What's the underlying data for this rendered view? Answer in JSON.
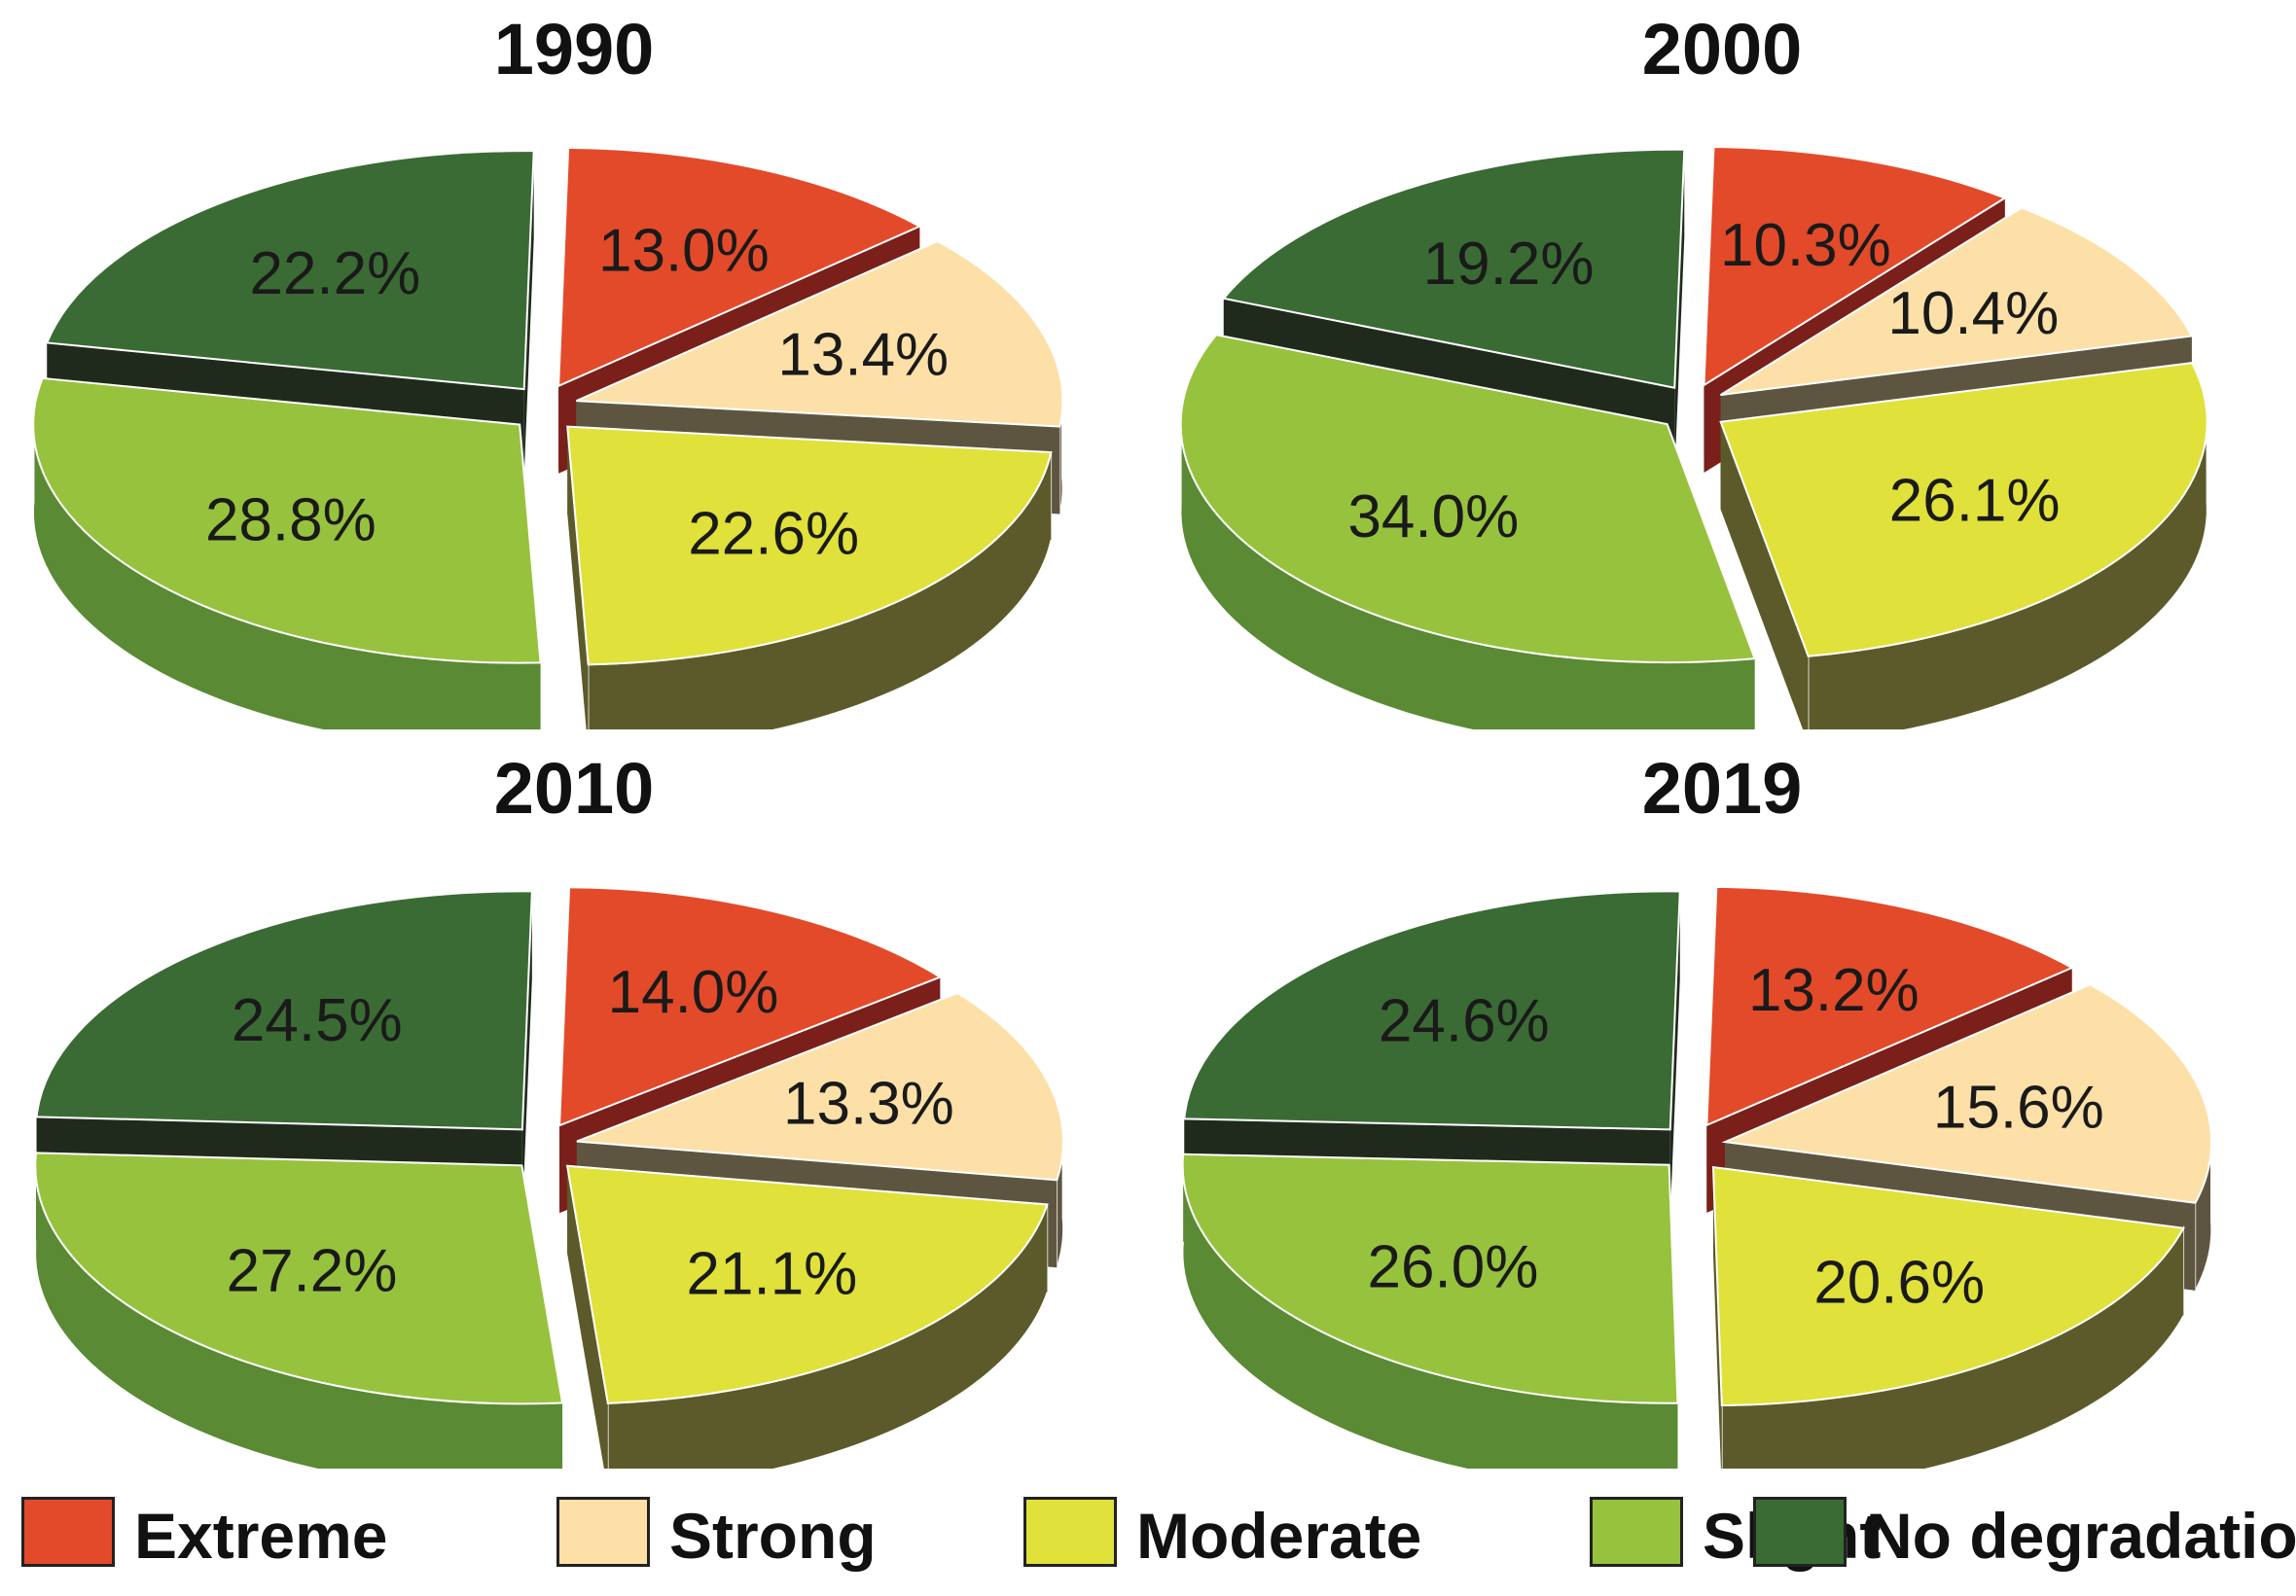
{
  "chart_data": [
    {
      "type": "pie",
      "title": "1990",
      "categories": [
        "Extreme",
        "Strong",
        "Moderate",
        "Slight",
        "No degradation"
      ],
      "values": [
        13.0,
        13.4,
        22.6,
        28.8,
        22.2
      ],
      "labels": [
        "13.0%",
        "13.4%",
        "22.6%",
        "28.8%",
        "22.2%"
      ]
    },
    {
      "type": "pie",
      "title": "2000",
      "categories": [
        "Extreme",
        "Strong",
        "Moderate",
        "Slight",
        "No degradation"
      ],
      "values": [
        10.3,
        10.4,
        26.1,
        34.0,
        19.2
      ],
      "labels": [
        "10.3%",
        "10.4%",
        "26.1%",
        "34.0%",
        "19.2%"
      ]
    },
    {
      "type": "pie",
      "title": "2010",
      "categories": [
        "Extreme",
        "Strong",
        "Moderate",
        "Slight",
        "No degradation"
      ],
      "values": [
        14.0,
        13.3,
        21.1,
        27.2,
        24.5
      ],
      "labels": [
        "14.0%",
        "13.3%",
        "21.1%",
        "27.2%",
        "24.5%"
      ]
    },
    {
      "type": "pie",
      "title": "2019",
      "categories": [
        "Extreme",
        "Strong",
        "Moderate",
        "Slight",
        "No degradation"
      ],
      "values": [
        13.2,
        15.6,
        20.6,
        26.0,
        24.6
      ],
      "labels": [
        "13.2%",
        "15.6%",
        "20.6%",
        "26.0%",
        "24.6%"
      ]
    }
  ],
  "legend": [
    {
      "label": "Extreme",
      "color": "#e34a2a"
    },
    {
      "label": "Strong",
      "color": "#fde0a7"
    },
    {
      "label": "Moderate",
      "color": "#e0e13a"
    },
    {
      "label": "Slight",
      "color": "#97c23d"
    },
    {
      "label": "No degradation",
      "color": "#3a6b34"
    }
  ],
  "style": {
    "exploded": true,
    "three_d": true,
    "side_colors": [
      "#7a1f1a",
      "#5e5540",
      "#5c5a2a",
      "#5a8a34",
      "#1f2a1c"
    ]
  }
}
